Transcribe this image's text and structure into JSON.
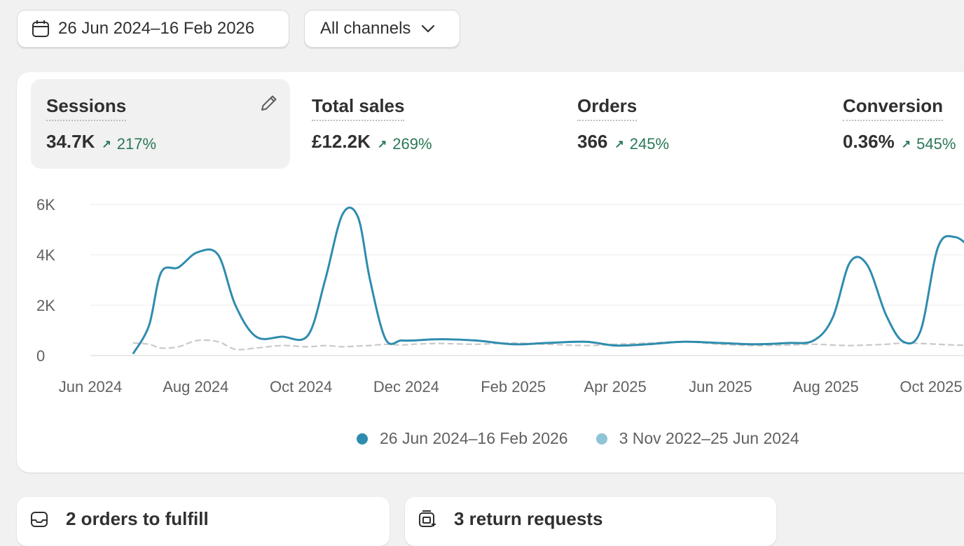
{
  "filters": {
    "date_range": "26 Jun 2024–16 Feb 2026",
    "channel": "All channels"
  },
  "metrics": [
    {
      "label": "Sessions",
      "value": "34.7K",
      "delta": "217%",
      "active": true
    },
    {
      "label": "Total sales",
      "value": "£12.2K",
      "delta": "269%",
      "active": false
    },
    {
      "label": "Orders",
      "value": "366",
      "delta": "245%",
      "active": false
    },
    {
      "label": "Conversion",
      "value": "0.36%",
      "delta": "545%",
      "active": false
    }
  ],
  "colors": {
    "current_series": "#2e8cae",
    "comparison_series": "#c9c9c9",
    "comparison_legend": "#8fc3d6",
    "positive_delta": "#297856"
  },
  "chart_data": {
    "type": "line",
    "x": [
      "2024-06-26",
      "2024-07-05",
      "2024-07-12",
      "2024-07-22",
      "2024-08-02",
      "2024-08-14",
      "2024-08-24",
      "2024-09-05",
      "2024-09-20",
      "2024-10-05",
      "2024-10-15",
      "2024-10-25",
      "2024-11-03",
      "2024-11-10",
      "2024-11-19",
      "2024-11-28",
      "2024-12-05",
      "2024-12-20",
      "2025-01-10",
      "2025-02-01",
      "2025-02-20",
      "2025-03-15",
      "2025-04-01",
      "2025-04-20",
      "2025-05-10",
      "2025-06-01",
      "2025-06-20",
      "2025-07-10",
      "2025-07-25",
      "2025-08-05",
      "2025-08-15",
      "2025-08-25",
      "2025-09-05",
      "2025-09-15",
      "2025-09-25",
      "2025-10-05",
      "2025-10-15",
      "2025-10-25"
    ],
    "series": [
      {
        "name": "26 Jun 2024–16 Feb 2026",
        "values": [
          0.1,
          1.2,
          3.3,
          3.5,
          4.1,
          4.0,
          2.0,
          0.75,
          0.75,
          0.8,
          3.0,
          5.6,
          5.5,
          3.0,
          0.65,
          0.6,
          0.6,
          0.65,
          0.6,
          0.45,
          0.5,
          0.55,
          0.4,
          0.45,
          0.55,
          0.5,
          0.45,
          0.5,
          0.6,
          1.5,
          3.7,
          3.6,
          1.6,
          0.55,
          1.0,
          4.3,
          4.7,
          4.2
        ]
      },
      {
        "name": "3 Nov 2022–25 Jun 2024",
        "values": [
          0.5,
          0.45,
          0.3,
          0.35,
          0.6,
          0.55,
          0.25,
          0.3,
          0.4,
          0.35,
          0.4,
          0.35,
          0.38,
          0.4,
          0.45,
          0.42,
          0.45,
          0.48,
          0.45,
          0.5,
          0.45,
          0.4,
          0.45,
          0.5,
          0.55,
          0.45,
          0.4,
          0.42,
          0.45,
          0.42,
          0.4,
          0.42,
          0.45,
          0.5,
          0.48,
          0.45,
          0.42,
          0.4
        ]
      }
    ],
    "xlabel": "",
    "ylabel": "",
    "ylim": [
      0,
      6
    ],
    "y_ticks": [
      "0",
      "2K",
      "4K",
      "6K"
    ],
    "x_ticks": [
      "Jun 2024",
      "Aug 2024",
      "Oct 2024",
      "Dec 2024",
      "Feb 2025",
      "Apr 2025",
      "Jun 2025",
      "Aug 2025",
      "Oct 2025"
    ],
    "x_tick_dates": [
      "2024-06-01",
      "2024-08-01",
      "2024-10-01",
      "2024-12-01",
      "2025-02-01",
      "2025-04-01",
      "2025-06-01",
      "2025-08-01",
      "2025-10-01"
    ],
    "grid": true,
    "legend": "bottom"
  },
  "tasks": {
    "orders_label": "2 orders to fulfill",
    "returns_label": "3 return requests"
  }
}
